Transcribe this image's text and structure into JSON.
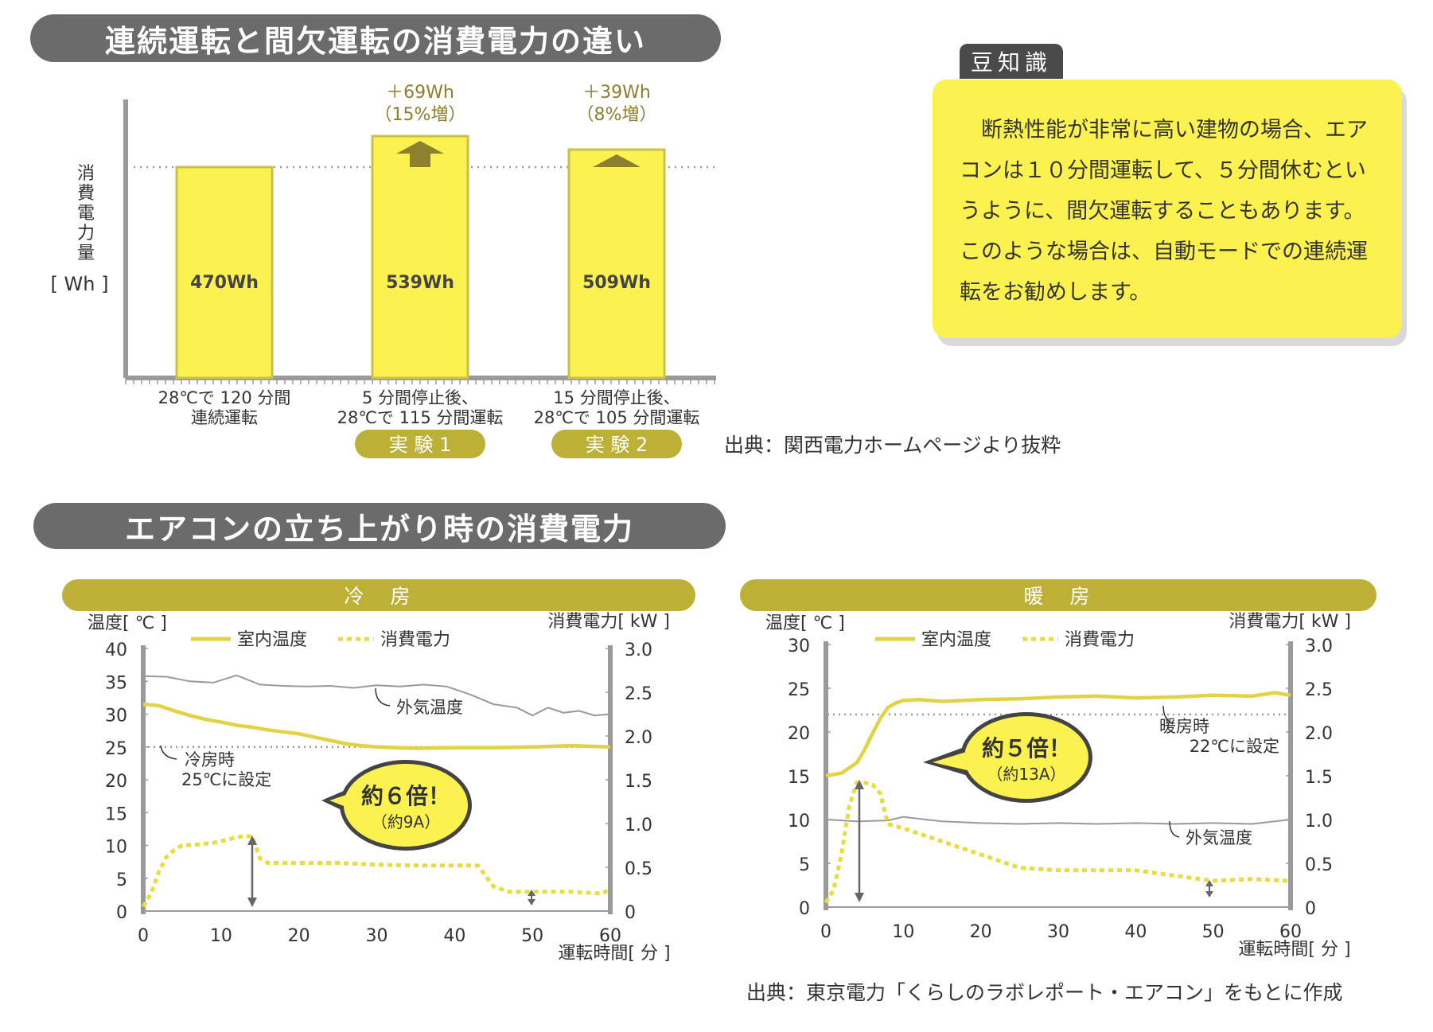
{
  "colors": {
    "title_pill": "#6b6b6b",
    "band": "#bdb036",
    "bar_fill": "#fbf250",
    "bar_stroke": "#c9c04a",
    "indoor_line": "#e2d245",
    "power_line": "#e8dd3f",
    "outdoor_line": "#9a9a9a",
    "label_pill": "#bdb036",
    "arrow": "#8c7f2e",
    "tip_fill": "#fbf250"
  },
  "section1": {
    "title": "連続運転と間欠運転の消費電力の違い",
    "source": "出典：関西電力ホームページより抜粋"
  },
  "section2": {
    "title": "エアコンの立ち上がり時の消費電力",
    "source": "出典：東京電力「くらしのラボレポート・エアコン」をもとに作成"
  },
  "tip": {
    "tab": "豆知識",
    "text": "断熱性能が非常に高い建物の場合、エアコンは１０分間運転して、５分間休むというように、間欠運転することもあります。このような場合は、自動モードでの連続運転をお勧めします。"
  },
  "chart_data": [
    {
      "type": "bar",
      "ylabel": [
        "消",
        "費",
        "電",
        "力",
        "量"
      ],
      "yunit": "[ Wh ]",
      "categories": [
        [
          "28℃で 120 分間",
          "連続運転"
        ],
        [
          "5 分間停止後、",
          "28℃で 115 分間運転"
        ],
        [
          "15 分間停止後、",
          "28℃で 105 分間運転"
        ]
      ],
      "values": [
        470,
        539,
        509
      ],
      "value_labels": [
        "470Wh",
        "539Wh",
        "509Wh"
      ],
      "baseline": 470,
      "increase_labels": [
        "",
        "＋69Wh",
        "＋39Wh"
      ],
      "increase_pct": [
        "",
        "（15%増）",
        "（8%増）"
      ],
      "experiment_labels": [
        "",
        "実 験 1",
        "実 験 2"
      ]
    },
    {
      "type": "line",
      "band_label": "冷　房",
      "ylabel_left": "温度[ ℃ ]",
      "ylabel_right": "消費電力[ kW ]",
      "xlabel": "運転時間[ 分 ]",
      "legend": [
        "室内温度",
        "消費電力"
      ],
      "x_ticks": [
        0,
        10,
        20,
        30,
        40,
        50,
        60
      ],
      "y_left_ticks": [
        0,
        5,
        10,
        15,
        20,
        25,
        30,
        35,
        40
      ],
      "y_right_ticks": [
        "0",
        "0.5",
        "1.0",
        "1.5",
        "2.0",
        "2.5",
        "3.0"
      ],
      "ylim_left": [
        0,
        40
      ],
      "ylim_right": [
        0,
        3.0
      ],
      "xlim": [
        0,
        60
      ],
      "setpoint": 25,
      "setpoint_label": [
        "冷房時",
        "25℃に設定"
      ],
      "outdoor_label": "外気温度",
      "callout": [
        "約６倍！",
        "（約9A）"
      ],
      "series": [
        {
          "name": "室内温度",
          "axis": "left",
          "x": [
            0,
            2,
            4,
            6,
            8,
            10,
            12,
            14,
            16,
            18,
            20,
            22,
            24,
            26,
            28,
            30,
            35,
            40,
            45,
            50,
            55,
            60
          ],
          "y": [
            31.5,
            31.3,
            30.5,
            29.8,
            29.2,
            28.8,
            28.3,
            28.0,
            27.6,
            27.3,
            27.0,
            26.5,
            26.0,
            25.5,
            25.2,
            25.0,
            24.8,
            24.9,
            24.9,
            25.0,
            25.2,
            25.0
          ]
        },
        {
          "name": "消費電力",
          "axis": "right",
          "x": [
            0,
            1,
            2,
            3,
            4,
            5,
            7,
            9,
            11,
            13,
            14,
            15,
            16,
            20,
            25,
            30,
            35,
            40,
            43,
            44,
            45,
            47,
            50,
            55,
            59,
            60
          ],
          "y": [
            0.05,
            0.2,
            0.45,
            0.62,
            0.7,
            0.75,
            0.76,
            0.78,
            0.82,
            0.86,
            0.85,
            0.6,
            0.55,
            0.55,
            0.55,
            0.53,
            0.52,
            0.52,
            0.52,
            0.4,
            0.28,
            0.22,
            0.22,
            0.22,
            0.2,
            0.25
          ]
        },
        {
          "name": "外気温度",
          "axis": "left",
          "x": [
            0,
            3,
            6,
            9,
            12,
            15,
            18,
            21,
            24,
            27,
            30,
            33,
            36,
            39,
            42,
            45,
            48,
            50,
            52,
            54,
            56,
            58,
            60
          ],
          "y": [
            35.8,
            35.7,
            35.0,
            34.8,
            35.9,
            34.5,
            34.3,
            34.2,
            34.3,
            34.0,
            34.4,
            34.2,
            34.5,
            34.2,
            33.0,
            31.5,
            31.0,
            29.8,
            31.0,
            30.2,
            30.5,
            29.8,
            30.0
          ]
        }
      ]
    },
    {
      "type": "line",
      "band_label": "暖　房",
      "ylabel_left": "温度[ ℃ ]",
      "ylabel_right": "消費電力[ kW ]",
      "xlabel": "運転時間[ 分 ]",
      "legend": [
        "室内温度",
        "消費電力"
      ],
      "x_ticks": [
        0,
        10,
        20,
        30,
        40,
        50,
        60
      ],
      "y_left_ticks": [
        0,
        5,
        10,
        15,
        20,
        25,
        30
      ],
      "y_right_ticks": [
        "0",
        "0.5",
        "1.0",
        "1.5",
        "2.0",
        "2.5",
        "3.0"
      ],
      "ylim_left": [
        0,
        30
      ],
      "ylim_right": [
        0,
        3.0
      ],
      "xlim": [
        0,
        60
      ],
      "setpoint": 22,
      "setpoint_label": [
        "暖房時",
        "22℃に設定"
      ],
      "outdoor_label": "外気温度",
      "callout": [
        "約５倍！",
        "（約13A）"
      ],
      "series": [
        {
          "name": "室内温度",
          "axis": "left",
          "x": [
            0,
            2,
            4,
            5,
            6,
            7,
            8,
            9,
            10,
            12,
            15,
            20,
            25,
            30,
            35,
            40,
            45,
            50,
            55,
            58,
            60
          ],
          "y": [
            15.0,
            15.3,
            16.5,
            18.0,
            19.8,
            21.5,
            22.8,
            23.3,
            23.6,
            23.7,
            23.5,
            23.7,
            23.8,
            24.0,
            24.1,
            23.9,
            24.0,
            24.2,
            24.1,
            24.5,
            24.2
          ]
        },
        {
          "name": "消費電力",
          "axis": "right",
          "x": [
            0,
            1,
            2,
            3,
            4,
            5,
            6,
            7,
            8,
            10,
            15,
            20,
            25,
            30,
            35,
            40,
            45,
            50,
            55,
            60
          ],
          "y": [
            0.05,
            0.2,
            0.6,
            1.15,
            1.42,
            1.42,
            1.4,
            1.3,
            0.95,
            0.9,
            0.75,
            0.6,
            0.45,
            0.42,
            0.42,
            0.42,
            0.36,
            0.3,
            0.32,
            0.3
          ]
        },
        {
          "name": "外気温度",
          "axis": "left",
          "x": [
            0,
            4,
            8,
            10,
            15,
            20,
            25,
            30,
            35,
            40,
            45,
            50,
            55,
            60
          ],
          "y": [
            10.0,
            9.8,
            9.9,
            10.3,
            9.8,
            9.6,
            9.5,
            9.6,
            9.5,
            9.6,
            9.5,
            9.6,
            9.5,
            10.0
          ]
        }
      ]
    }
  ]
}
